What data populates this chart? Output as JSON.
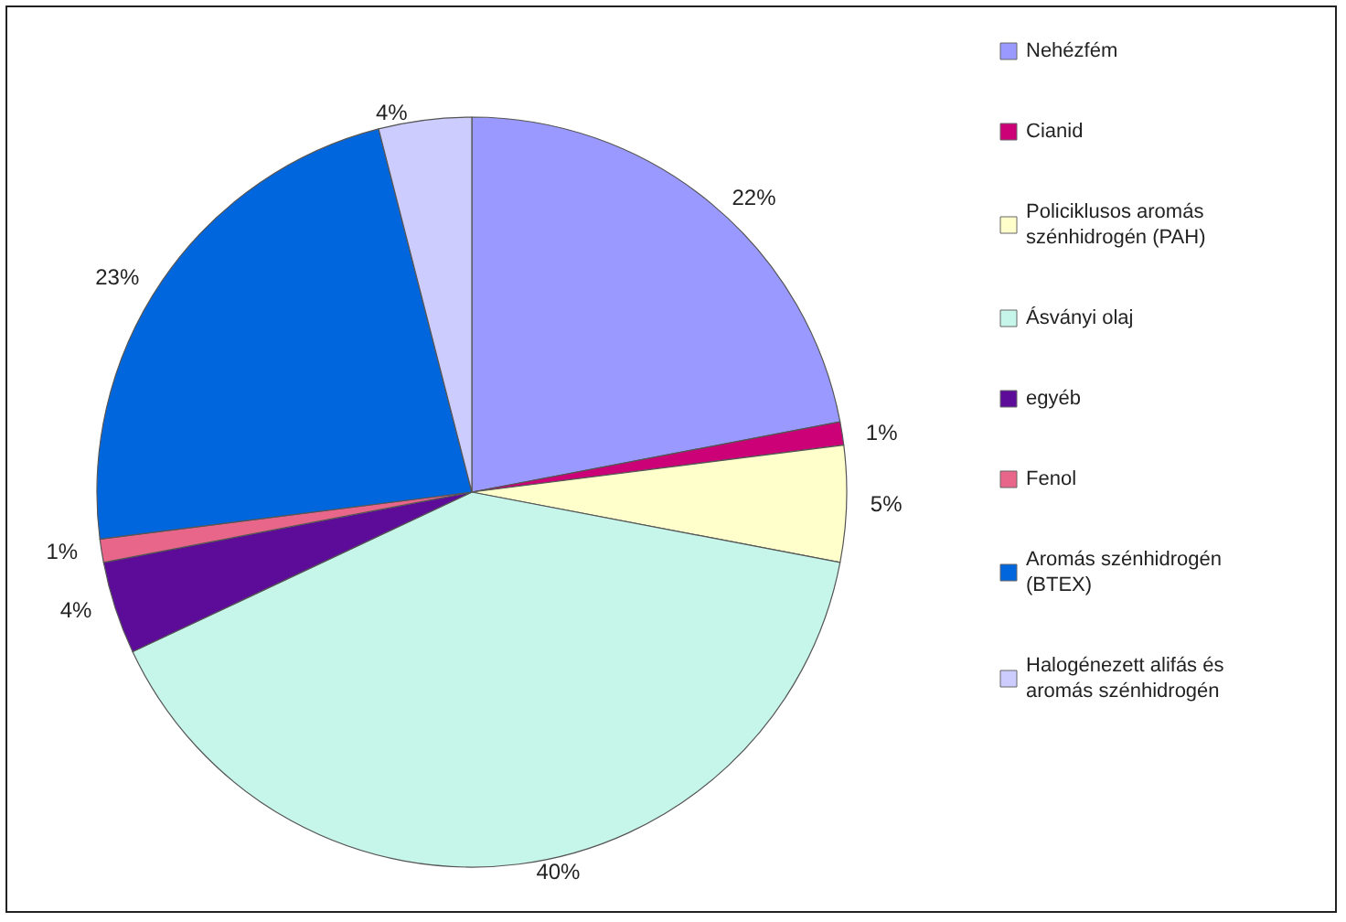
{
  "chart_data": {
    "type": "pie",
    "categories": [
      "Nehézfém",
      "Cianid",
      "Policiklusos aromás szénhidrogén (PAH)",
      "Ásványi olaj",
      "egyéb",
      "Fenol",
      "Aromás szénhidrogén (BTEX)",
      "Halogénezett alifás és aromás szénhidrogén"
    ],
    "values": [
      22,
      1,
      5,
      40,
      4,
      1,
      23,
      4
    ],
    "value_labels": [
      "22%",
      "1%",
      "5%",
      "40%",
      "4%",
      "1%",
      "23%",
      "4%"
    ],
    "colors": [
      "#9999ff",
      "#cc0077",
      "#ffffcc",
      "#c6f5ea",
      "#5c0c99",
      "#e8668a",
      "#0066dd",
      "#ccccff"
    ],
    "legend": "right"
  }
}
